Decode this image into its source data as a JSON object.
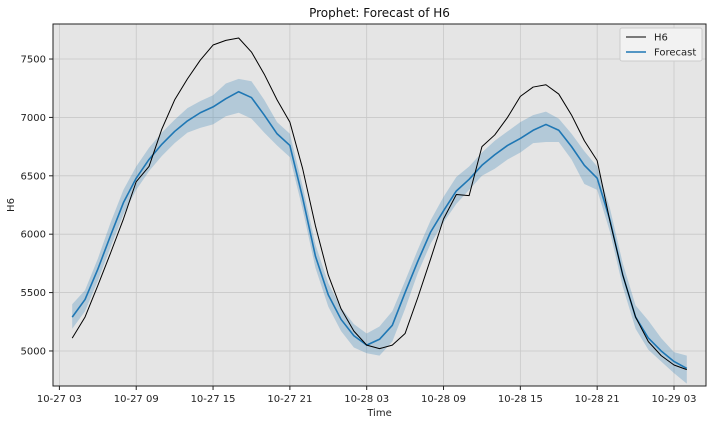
{
  "chart_data": {
    "type": "line",
    "title": "Prophet: Forecast of H6",
    "xlabel": "Time",
    "ylabel": "H6",
    "x_start": "2023-10-27T04:00",
    "x_step_hours": 1,
    "xlim_hours": [
      -1.5,
      49.5
    ],
    "ylim": [
      4700,
      7800
    ],
    "x_ticks": [
      {
        "label": "10-27 03",
        "hour": -1
      },
      {
        "label": "10-27 09",
        "hour": 5
      },
      {
        "label": "10-27 15",
        "hour": 11
      },
      {
        "label": "10-27 21",
        "hour": 17
      },
      {
        "label": "10-28 03",
        "hour": 23
      },
      {
        "label": "10-28 09",
        "hour": 29
      },
      {
        "label": "10-28 15",
        "hour": 35
      },
      {
        "label": "10-28 21",
        "hour": 41
      },
      {
        "label": "10-29 03",
        "hour": 47
      }
    ],
    "y_ticks": [
      5000,
      5500,
      6000,
      6500,
      7000,
      7500
    ],
    "grid": true,
    "legend_position": "top-right",
    "series": [
      {
        "name": "H6",
        "color": "#000000",
        "values": [
          5110,
          5290,
          5560,
          5840,
          6130,
          6450,
          6580,
          6900,
          7150,
          7330,
          7490,
          7620,
          7660,
          7680,
          7560,
          7370,
          7150,
          6960,
          6560,
          6070,
          5650,
          5360,
          5170,
          5050,
          5020,
          5050,
          5150,
          5460,
          5790,
          6130,
          6340,
          6330,
          6750,
          6850,
          7000,
          7180,
          7260,
          7280,
          7200,
          7020,
          6800,
          6630,
          6110,
          5650,
          5290,
          5080,
          4960,
          4880,
          4840
        ]
      },
      {
        "name": "Forecast",
        "color": "#1f77b4",
        "values": [
          5290,
          5440,
          5700,
          5990,
          6270,
          6480,
          6640,
          6770,
          6880,
          6970,
          7040,
          7090,
          7160,
          7220,
          7170,
          7020,
          6860,
          6760,
          6310,
          5810,
          5480,
          5270,
          5130,
          5050,
          5100,
          5220,
          5500,
          5770,
          6020,
          6200,
          6370,
          6470,
          6590,
          6680,
          6760,
          6820,
          6890,
          6940,
          6890,
          6750,
          6590,
          6480,
          6120,
          5650,
          5290,
          5110,
          5000,
          4910,
          4850
        ],
        "lower": [
          5190,
          5340,
          5600,
          5890,
          6170,
          6380,
          6540,
          6670,
          6780,
          6870,
          6910,
          6940,
          7010,
          7040,
          6990,
          6870,
          6760,
          6660,
          6210,
          5710,
          5380,
          5170,
          5030,
          4980,
          4960,
          5080,
          5360,
          5670,
          5920,
          6100,
          6260,
          6380,
          6500,
          6560,
          6640,
          6700,
          6780,
          6790,
          6790,
          6640,
          6430,
          6380,
          6020,
          5550,
          5190,
          5010,
          4910,
          4810,
          4720
        ],
        "upper": [
          5400,
          5520,
          5790,
          6100,
          6380,
          6580,
          6740,
          6870,
          6980,
          7080,
          7140,
          7190,
          7290,
          7330,
          7310,
          7150,
          6960,
          6860,
          6410,
          5910,
          5580,
          5370,
          5230,
          5150,
          5210,
          5340,
          5600,
          5870,
          6120,
          6320,
          6490,
          6580,
          6700,
          6800,
          6880,
          6960,
          7020,
          7050,
          6990,
          6860,
          6710,
          6580,
          6220,
          5750,
          5390,
          5260,
          5110,
          4990,
          4960
        ]
      }
    ]
  }
}
